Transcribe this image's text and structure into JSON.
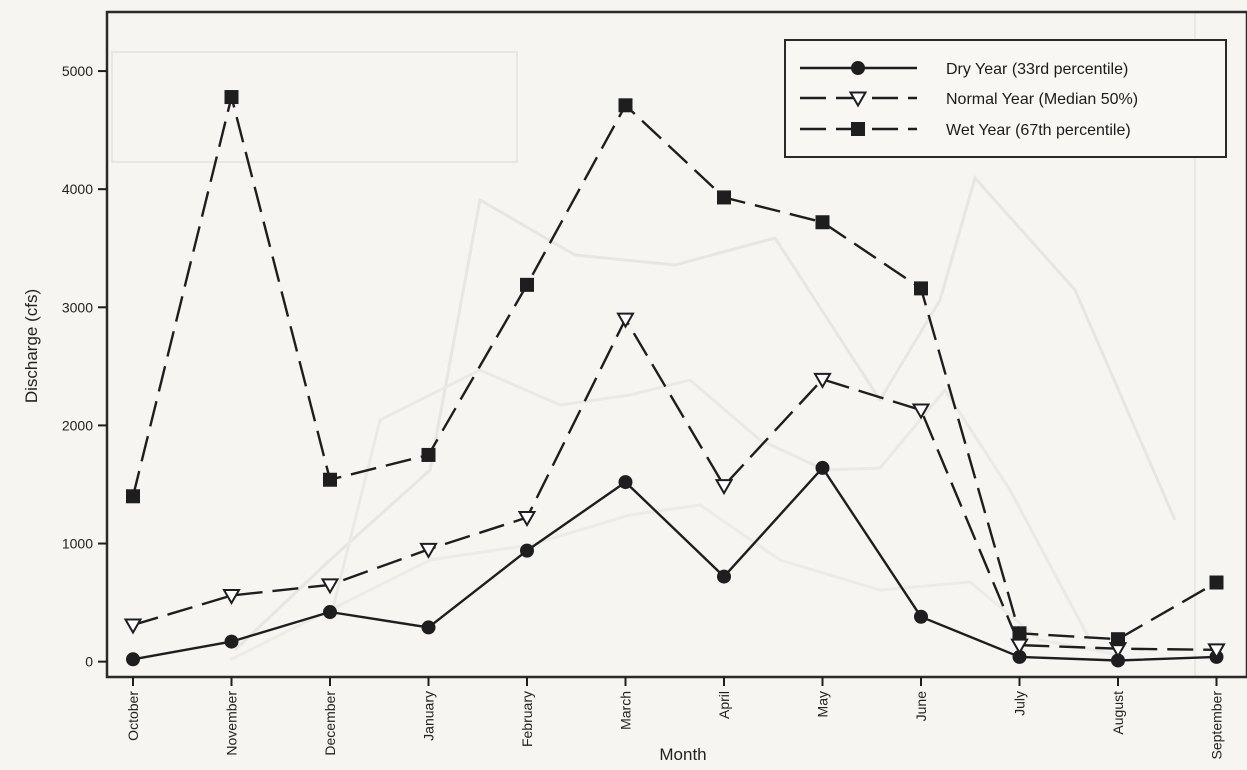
{
  "chart_data": {
    "type": "line",
    "xlabel": "Month",
    "ylabel": "Discharge (cfs)",
    "categories": [
      "October",
      "November",
      "December",
      "January",
      "February",
      "March",
      "April",
      "May",
      "June",
      "July",
      "August",
      "September"
    ],
    "y_ticks": [
      "0",
      "1000",
      "2000",
      "3000",
      "4000",
      "5000"
    ],
    "ylim": [
      -130,
      5500
    ],
    "grid": false,
    "legend_position": "top-right",
    "series": [
      {
        "name": "Dry Year (33rd percentile)",
        "marker": "filled-circle",
        "line_style": "solid",
        "values": [
          20,
          170,
          420,
          290,
          940,
          1520,
          720,
          1640,
          380,
          40,
          10,
          40
        ]
      },
      {
        "name": "Normal Year (Median 50%)",
        "marker": "open-triangle-down",
        "line_style": "dashed",
        "values": [
          310,
          560,
          650,
          950,
          1220,
          2900,
          1490,
          2390,
          2130,
          140,
          110,
          100
        ]
      },
      {
        "name": "Wet Year (67th percentile)",
        "marker": "filled-square",
        "line_style": "dashed",
        "values": [
          1400,
          4780,
          1540,
          1750,
          3190,
          4710,
          3930,
          3720,
          3160,
          240,
          190,
          670
        ]
      }
    ],
    "colors": {
      "background": "#f6f5f1",
      "line": "#1e1e1e",
      "ghost": "#e6e6e2"
    }
  }
}
